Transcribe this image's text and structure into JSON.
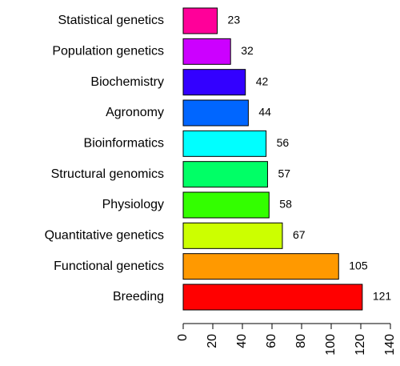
{
  "chart_data": {
    "type": "barh",
    "categories": [
      "Statistical genetics",
      "Population genetics",
      "Biochemistry",
      "Agronomy",
      "Bioinformatics",
      "Structural genomics",
      "Physiology",
      "Quantitative genetics",
      "Functional genetics",
      "Breeding"
    ],
    "values": [
      23,
      32,
      42,
      44,
      56,
      57,
      58,
      67,
      105,
      121
    ],
    "colors": [
      "#FF0099",
      "#CC00FF",
      "#3300FF",
      "#0066FF",
      "#00FFFF",
      "#00FF66",
      "#33FF00",
      "#CCFF00",
      "#FF9900",
      "#FF0000"
    ],
    "xlim": [
      0,
      140
    ],
    "xticks": [
      0,
      20,
      40,
      60,
      80,
      100,
      120,
      140
    ]
  }
}
